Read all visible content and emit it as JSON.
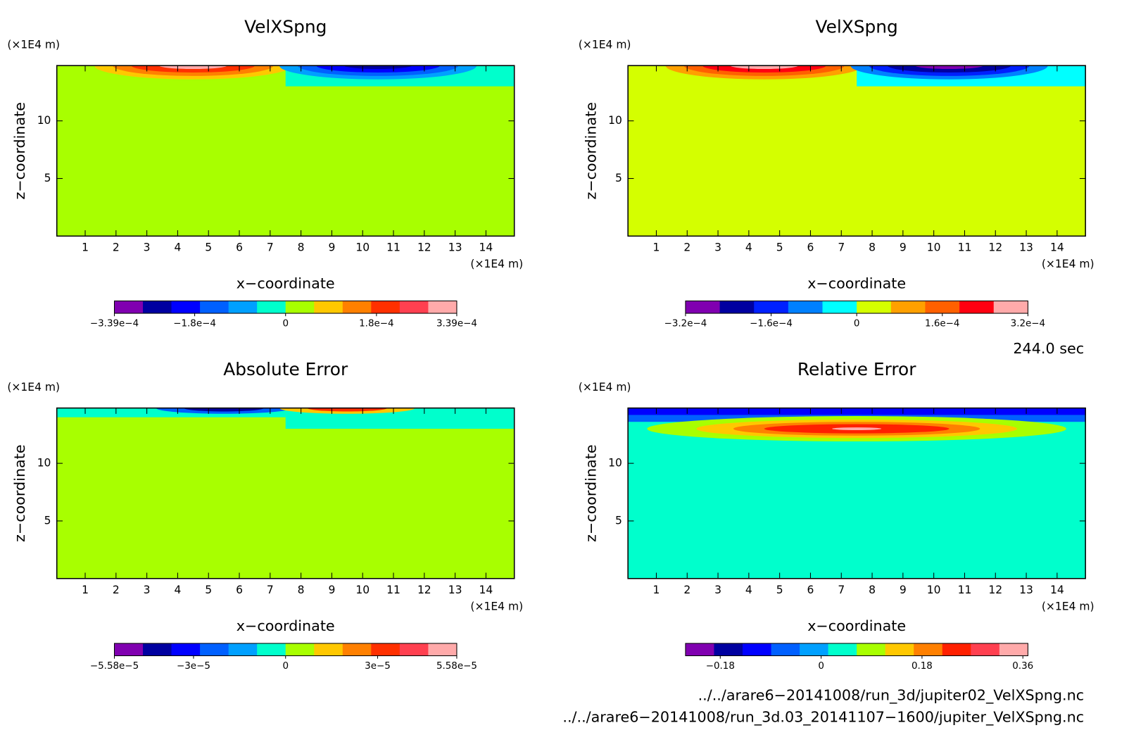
{
  "chart_data": [
    {
      "type": "contour",
      "title": "VelXSpng",
      "xlabel": "x−coordinate",
      "ylabel": "z−coordinate",
      "xunit": "(×1E4 m)",
      "yunit": "(×1E4 m)",
      "xlim": [
        0.08,
        14.92
      ],
      "ylim": [
        0,
        14.8
      ],
      "xticks": [
        1,
        2,
        3,
        4,
        5,
        6,
        7,
        8,
        9,
        10,
        11,
        12,
        13,
        14
      ],
      "yticks": [
        5,
        10
      ],
      "colorbar": {
        "lim": [
          -0.000339,
          0.000339
        ],
        "colors": [
          "#8000b0",
          "#0000a0",
          "#0000ff",
          "#0060ff",
          "#00a0ff",
          "#00ffcc",
          "#a8ff00",
          "#ffc800",
          "#ff8000",
          "#ff3000",
          "#ff4050",
          "#ffaaaa"
        ],
        "ticks": [
          {
            "value": -0.000339,
            "label": "−3.39e−4"
          },
          {
            "value": -0.00018,
            "label": "−1.8e−4"
          },
          0,
          {
            "value": 0.00018,
            "label": "1.8e−4"
          },
          {
            "value": 0.000339,
            "label": "3.39e−4"
          }
        ]
      }
    },
    {
      "type": "contour",
      "title": "VelXSpng",
      "xlabel": "x−coordinate",
      "ylabel": "z−coordinate",
      "xunit": "(×1E4 m)",
      "yunit": "(×1E4 m)",
      "xlim": [
        0.08,
        14.92
      ],
      "ylim": [
        0,
        14.8
      ],
      "xticks": [
        1,
        2,
        3,
        4,
        5,
        6,
        7,
        8,
        9,
        10,
        11,
        12,
        13,
        14
      ],
      "yticks": [
        5,
        10
      ],
      "colorbar": {
        "lim": [
          -0.00032,
          0.00032
        ],
        "colors": [
          "#8000b0",
          "#0000a0",
          "#0020ff",
          "#0080ff",
          "#00ffff",
          "#d4ff00",
          "#ffa000",
          "#ff6000",
          "#ff0010",
          "#ffaaaa"
        ],
        "ticks": [
          {
            "value": -0.00032,
            "label": "−3.2e−4"
          },
          {
            "value": -0.00016,
            "label": "−1.6e−4"
          },
          0,
          {
            "value": 0.00016,
            "label": "1.6e−4"
          },
          {
            "value": 0.00032,
            "label": "3.2e−4"
          }
        ]
      }
    },
    {
      "type": "contour",
      "title": "Absolute Error",
      "xlabel": "x−coordinate",
      "ylabel": "z−coordinate",
      "xunit": "(×1E4 m)",
      "yunit": "(×1E4 m)",
      "xlim": [
        0.08,
        14.92
      ],
      "ylim": [
        0,
        14.8
      ],
      "xticks": [
        1,
        2,
        3,
        4,
        5,
        6,
        7,
        8,
        9,
        10,
        11,
        12,
        13,
        14
      ],
      "yticks": [
        5,
        10
      ],
      "colorbar": {
        "lim": [
          -5.58e-05,
          5.58e-05
        ],
        "colors": [
          "#8000b0",
          "#0000a0",
          "#0000ff",
          "#0060ff",
          "#00a0ff",
          "#00ffcc",
          "#a8ff00",
          "#ffc800",
          "#ff8000",
          "#ff3000",
          "#ff4050",
          "#ffaaaa"
        ],
        "ticks": [
          {
            "value": -5.58e-05,
            "label": "−5.58e−5"
          },
          {
            "value": -3e-05,
            "label": "−3e−5"
          },
          0,
          {
            "value": 3e-05,
            "label": "3e−5"
          },
          {
            "value": 5.58e-05,
            "label": "5.58e−5"
          }
        ]
      }
    },
    {
      "type": "contour",
      "title": "Relative Error",
      "xlabel": "x−coordinate",
      "ylabel": "z−coordinate",
      "xunit": "(×1E4 m)",
      "yunit": "(×1E4 m)",
      "xlim": [
        0.08,
        14.92
      ],
      "ylim": [
        0,
        14.8
      ],
      "xticks": [
        1,
        2,
        3,
        4,
        5,
        6,
        7,
        8,
        9,
        10,
        11,
        12,
        13,
        14
      ],
      "yticks": [
        5,
        10
      ],
      "colorbar": {
        "lim": [
          -0.242,
          0.369
        ],
        "colors": [
          "#8000b0",
          "#0000a0",
          "#0000ff",
          "#0060ff",
          "#00a0ff",
          "#00ffcc",
          "#a8ff00",
          "#ffc800",
          "#ff8000",
          "#ff2000",
          "#ff4050",
          "#ffaaaa"
        ],
        "ticks": [
          {
            "value": -0.18,
            "label": "−0.18"
          },
          0,
          {
            "value": 0.18,
            "label": "0.18"
          },
          {
            "value": 0.36,
            "label": "0.36"
          }
        ]
      }
    }
  ],
  "annotations": {
    "time": "244.0 sec",
    "file1": "../../arare6−20141008/run_3d/jupiter02_VelXSpng.nc",
    "file2": "../../arare6−20141008/run_3d.03_20141107−1600/jupiter_VelXSpng.nc"
  }
}
